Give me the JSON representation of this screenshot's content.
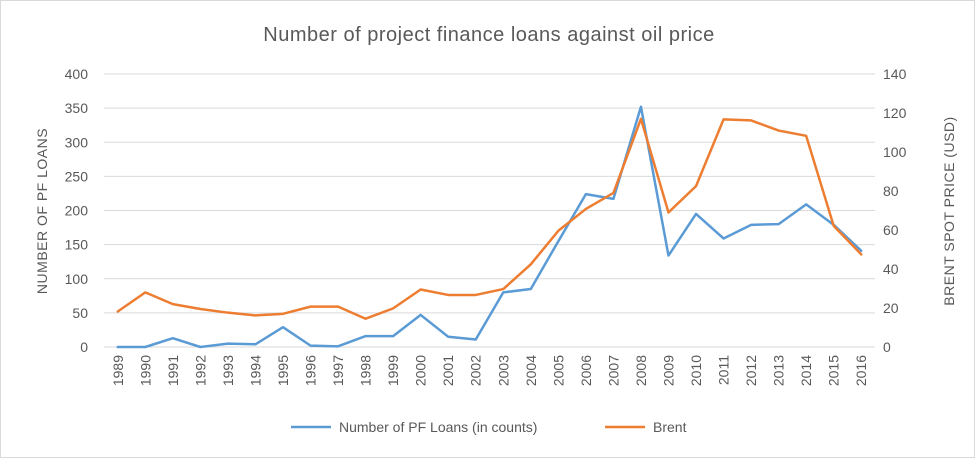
{
  "chart_data": {
    "type": "line",
    "title": "Number of project finance loans against oil price",
    "xlabel": "",
    "ylabel": "NUMBER OF PF LOANS",
    "y2label": "BRENT SPOT PRICE (USD)",
    "ylim": [
      0,
      400
    ],
    "y2lim": [
      0,
      140
    ],
    "y_ticks": [
      0,
      50,
      100,
      150,
      200,
      250,
      300,
      350,
      400
    ],
    "y2_ticks": [
      0,
      20,
      40,
      60,
      80,
      100,
      120,
      140
    ],
    "grid": true,
    "legend_position": "bottom",
    "categories": [
      "1989",
      "1990",
      "1991",
      "1992",
      "1993",
      "1994",
      "1995",
      "1996",
      "1997",
      "1998",
      "1999",
      "2000",
      "2001",
      "2002",
      "2003",
      "2004",
      "2005",
      "2006",
      "2007",
      "2008",
      "2009",
      "2010",
      "2011",
      "2012",
      "2013",
      "2014",
      "2015",
      "2016"
    ],
    "series": [
      {
        "name": "Number of PF Loans (in counts)",
        "axis": "left",
        "color": "#5B9BD5",
        "values": [
          0,
          0,
          13,
          0,
          5,
          4,
          29,
          2,
          1,
          16,
          16,
          47,
          15,
          11,
          80,
          85,
          155,
          224,
          217,
          352,
          134,
          195,
          159,
          179,
          180,
          209,
          179,
          141
        ]
      },
      {
        "name": "Brent",
        "axis": "right",
        "color": "#ED7D31",
        "values": [
          18.2,
          28,
          22,
          19.5,
          17.6,
          16.2,
          17,
          20.7,
          20.7,
          14.5,
          19.8,
          29.5,
          26.7,
          26.7,
          29.7,
          42.4,
          59.6,
          70.8,
          79,
          117,
          69,
          82.5,
          116.7,
          116.2,
          111,
          108.3,
          62.1,
          47.5
        ]
      }
    ]
  }
}
